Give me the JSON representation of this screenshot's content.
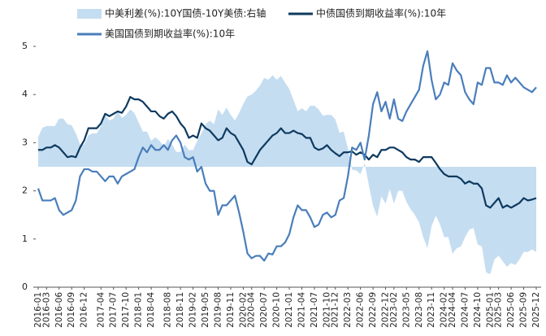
{
  "chart_data": {
    "type": "line",
    "x": [
      "2016-01",
      "2016-02",
      "2016-03",
      "2016-04",
      "2016-05",
      "2016-06",
      "2016-07",
      "2016-08",
      "2016-09",
      "2016-10",
      "2016-11",
      "2016-12",
      "2017-01",
      "2017-02",
      "2017-03",
      "2017-04",
      "2017-05",
      "2017-06",
      "2017-07",
      "2017-08",
      "2017-09",
      "2017-10",
      "2017-11",
      "2017-12",
      "2018-01",
      "2018-02",
      "2018-03",
      "2018-04",
      "2018-05",
      "2018-06",
      "2018-07",
      "2018-08",
      "2018-09",
      "2018-10",
      "2018-11",
      "2018-12",
      "2019-01",
      "2019-02",
      "2019-03",
      "2019-04",
      "2019-05",
      "2019-06",
      "2019-07",
      "2019-08",
      "2019-09",
      "2019-10",
      "2019-11",
      "2019-12",
      "2020-01",
      "2020-02",
      "2020-03",
      "2020-04",
      "2020-05",
      "2020-06",
      "2020-07",
      "2020-08",
      "2020-09",
      "2020-10",
      "2020-11",
      "2020-12",
      "2021-01",
      "2021-02",
      "2021-03",
      "2021-04",
      "2021-05",
      "2021-06",
      "2021-07",
      "2021-08",
      "2021-09",
      "2021-10",
      "2021-11",
      "2021-12",
      "2022-01",
      "2022-02",
      "2022-03",
      "2022-04",
      "2022-05",
      "2022-06",
      "2022-07",
      "2022-08",
      "2022-09",
      "2022-10",
      "2022-11",
      "2022-12",
      "2023-01",
      "2023-02",
      "2023-03",
      "2023-04",
      "2023-05",
      "2023-06",
      "2023-07",
      "2023-08",
      "2023-09",
      "2023-10",
      "2023-11",
      "2023-12",
      "2024-01",
      "2024-02",
      "2024-03",
      "2024-04",
      "2024-05",
      "2024-06",
      "2024-07",
      "2024-08",
      "2024-09",
      "2024-10",
      "2024-11",
      "2024-12",
      "2025-01",
      "2025-02",
      "2025-03",
      "2025-04",
      "2025-05",
      "2025-06",
      "2025-07",
      "2025-08",
      "2025-09",
      "2025-10",
      "2025-11",
      "2025-12"
    ],
    "xticks": [
      "2016-01",
      "2016-03",
      "2016-06",
      "2016-09",
      "2016-12",
      "2017-04",
      "2017-07",
      "2017-10",
      "2018-01",
      "2018-04",
      "2018-08",
      "2018-11",
      "2019-02",
      "2019-05",
      "2019-08",
      "2019-11",
      "2020-02",
      "2020-04",
      "2020-07",
      "2020-10",
      "2021-01",
      "2021-04",
      "2021-07",
      "2021-10",
      "2021-12",
      "2022-03",
      "2022-06",
      "2022-09",
      "2022-12",
      "2023-02",
      "2023-05",
      "2023-08",
      "2023-11",
      "2024-02",
      "2024-04",
      "2024-07",
      "2024-10",
      "2025-01",
      "2025-03",
      "2025-06",
      "2025-09",
      "2025-12"
    ],
    "ylim": [
      0,
      5
    ],
    "yticks": [
      0,
      1,
      2,
      3,
      4,
      5
    ],
    "y2lim": [
      -3.25,
      3.25
    ],
    "series": [
      {
        "name": "中美利差(%):10Y国债-10Y美债:右轴",
        "type": "area",
        "axis": "y2",
        "color": "#c5ddf1",
        "values": [
          0.8,
          1.05,
          1.1,
          1.1,
          1.1,
          1.3,
          1.3,
          1.15,
          1.12,
          0.9,
          0.6,
          0.6,
          0.85,
          0.9,
          0.9,
          1.1,
          1.4,
          1.25,
          1.3,
          1.5,
          1.32,
          1.4,
          1.55,
          1.45,
          1.2,
          0.95,
          0.95,
          0.7,
          0.8,
          0.7,
          0.55,
          0.75,
          0.6,
          0.4,
          0.4,
          0.6,
          0.45,
          0.45,
          0.7,
          0.9,
          1.15,
          1.25,
          1.15,
          1.55,
          1.4,
          1.6,
          1.4,
          1.25,
          1.45,
          1.7,
          1.9,
          1.95,
          2.05,
          2.2,
          2.4,
          2.35,
          2.47,
          2.35,
          2.45,
          2.27,
          2.1,
          1.8,
          1.5,
          1.58,
          1.5,
          1.65,
          1.65,
          1.55,
          1.38,
          1.4,
          1.4,
          1.28,
          0.92,
          0.95,
          0.5,
          -0.08,
          -0.1,
          -0.2,
          0.1,
          -0.5,
          -1.05,
          -1.35,
          -0.8,
          -1.0,
          -0.6,
          -1.0,
          -0.65,
          -0.65,
          -0.95,
          -1.15,
          -1.3,
          -1.5,
          -1.9,
          -2.2,
          -1.6,
          -1.32,
          -1.55,
          -1.9,
          -1.9,
          -2.35,
          -2.2,
          -2.15,
          -1.9,
          -1.7,
          -1.65,
          -2.1,
          -2.15,
          -2.85,
          -2.9,
          -2.5,
          -2.4,
          -2.55,
          -2.7,
          -2.6,
          -2.65,
          -2.5,
          -2.3,
          -2.3,
          -2.23,
          -2.3
        ]
      },
      {
        "name": "中债国债到期收益率(%):10年",
        "type": "line",
        "color": "#0e3a5f",
        "values": [
          2.85,
          2.85,
          2.9,
          2.9,
          2.95,
          2.9,
          2.8,
          2.7,
          2.72,
          2.7,
          2.9,
          3.05,
          3.3,
          3.3,
          3.3,
          3.4,
          3.6,
          3.55,
          3.6,
          3.65,
          3.62,
          3.75,
          3.95,
          3.9,
          3.9,
          3.85,
          3.75,
          3.65,
          3.65,
          3.55,
          3.5,
          3.6,
          3.65,
          3.55,
          3.4,
          3.3,
          3.1,
          3.15,
          3.1,
          3.4,
          3.3,
          3.25,
          3.15,
          3.05,
          3.1,
          3.3,
          3.2,
          3.15,
          3.0,
          2.85,
          2.6,
          2.55,
          2.7,
          2.85,
          2.95,
          3.05,
          3.15,
          3.2,
          3.3,
          3.2,
          3.2,
          3.25,
          3.2,
          3.18,
          3.1,
          3.1,
          2.9,
          2.85,
          2.88,
          2.95,
          2.85,
          2.78,
          2.72,
          2.8,
          2.8,
          2.82,
          2.75,
          2.8,
          2.75,
          2.65,
          2.75,
          2.7,
          2.85,
          2.85,
          2.9,
          2.9,
          2.85,
          2.8,
          2.7,
          2.65,
          2.65,
          2.6,
          2.7,
          2.7,
          2.7,
          2.58,
          2.45,
          2.35,
          2.3,
          2.3,
          2.3,
          2.25,
          2.15,
          2.2,
          2.15,
          2.15,
          2.05,
          1.7,
          1.65,
          1.75,
          1.85,
          1.65,
          1.7,
          1.65,
          1.7,
          1.75,
          1.85,
          1.8,
          1.82,
          1.85
        ]
      },
      {
        "name": "美国国债到期收益率(%):10年",
        "type": "line",
        "color": "#4a7ebb",
        "values": [
          2.05,
          1.8,
          1.8,
          1.8,
          1.85,
          1.6,
          1.5,
          1.55,
          1.6,
          1.8,
          2.3,
          2.45,
          2.45,
          2.4,
          2.4,
          2.3,
          2.2,
          2.3,
          2.3,
          2.15,
          2.3,
          2.35,
          2.4,
          2.45,
          2.7,
          2.9,
          2.8,
          2.95,
          2.85,
          2.85,
          2.95,
          2.85,
          3.05,
          3.15,
          3.0,
          2.7,
          2.65,
          2.7,
          2.4,
          2.5,
          2.15,
          2.0,
          2.0,
          1.5,
          1.7,
          1.7,
          1.8,
          1.9,
          1.55,
          1.15,
          0.7,
          0.6,
          0.65,
          0.65,
          0.55,
          0.7,
          0.68,
          0.85,
          0.85,
          0.93,
          1.1,
          1.45,
          1.7,
          1.6,
          1.6,
          1.45,
          1.25,
          1.3,
          1.5,
          1.55,
          1.45,
          1.5,
          1.8,
          1.85,
          2.3,
          2.9,
          2.85,
          3.0,
          2.65,
          3.15,
          3.8,
          4.05,
          3.65,
          3.85,
          3.5,
          3.9,
          3.5,
          3.45,
          3.65,
          3.8,
          3.95,
          4.1,
          4.6,
          4.9,
          4.3,
          3.9,
          4.0,
          4.25,
          4.2,
          4.65,
          4.5,
          4.4,
          4.05,
          3.9,
          3.8,
          4.25,
          4.2,
          4.55,
          4.55,
          4.25,
          4.25,
          4.2,
          4.4,
          4.25,
          4.35,
          4.25,
          4.15,
          4.1,
          4.05,
          4.15
        ]
      }
    ]
  }
}
